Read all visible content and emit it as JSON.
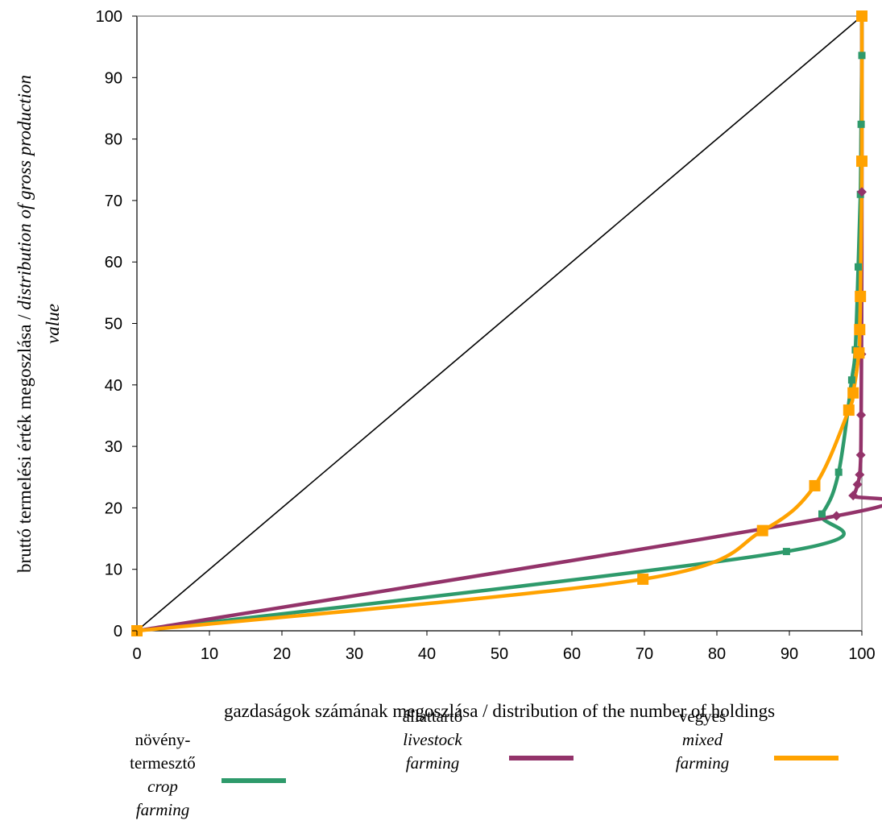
{
  "chart_data": {
    "type": "line",
    "xlabel": "gazdaságok számának megoszlása / distribution of the number of holdings",
    "ylabel": {
      "plain": "bruttó termelési érték megoszlása / ",
      "italic": "distribution of gross production",
      "italic2": "value"
    },
    "xlim": [
      0,
      100
    ],
    "ylim": [
      0,
      100
    ],
    "x_ticks": [
      "0",
      "10",
      "20",
      "30",
      "40",
      "50",
      "60",
      "70",
      "80",
      "90",
      "100"
    ],
    "y_ticks": [
      "0",
      "10",
      "20",
      "30",
      "40",
      "50",
      "60",
      "70",
      "80",
      "90",
      "100"
    ],
    "grid": false,
    "legend_position": "bottom",
    "diagonal": {
      "x": [
        0,
        100
      ],
      "y": [
        0,
        100
      ],
      "color": "#000000"
    },
    "series": [
      {
        "key": "crop",
        "legend_lines": [
          "növény-",
          "termesztő"
        ],
        "legend_italic": [
          "crop",
          "farming"
        ],
        "color": "#2E9A6B",
        "marker": "square-small",
        "x": [
          0,
          89.6,
          94.5,
          96.8,
          98.6,
          99.1,
          99.5,
          99.8,
          99.9,
          100.0,
          100.0,
          100.0
        ],
        "y": [
          0,
          12.9,
          19.0,
          25.8,
          40.8,
          45.7,
          59.2,
          71.0,
          82.4,
          93.6,
          100,
          100
        ]
      },
      {
        "key": "livestock",
        "legend_lines": [
          "állattartó"
        ],
        "legend_italic": [
          "livestock",
          "farming"
        ],
        "color": "#93336A",
        "marker": "diamond",
        "x": [
          0,
          96.5,
          98.8,
          99.4,
          99.7,
          99.85,
          99.9,
          99.95,
          100.0,
          100.0
        ],
        "y": [
          0,
          18.7,
          22.0,
          23.8,
          25.4,
          28.6,
          35.1,
          45.0,
          71.4,
          100
        ]
      },
      {
        "key": "mixed",
        "legend_lines": [
          "vegyes"
        ],
        "legend_italic": [
          "mixed",
          "farming"
        ],
        "color": "#FFA200",
        "marker": "square-large",
        "x": [
          0,
          69.8,
          86.3,
          93.5,
          98.2,
          98.8,
          99.6,
          99.7,
          99.8,
          100.0,
          100.0
        ],
        "y": [
          0,
          8.4,
          16.3,
          23.6,
          35.9,
          38.7,
          45.2,
          49.0,
          54.4,
          76.4,
          100
        ]
      }
    ]
  }
}
